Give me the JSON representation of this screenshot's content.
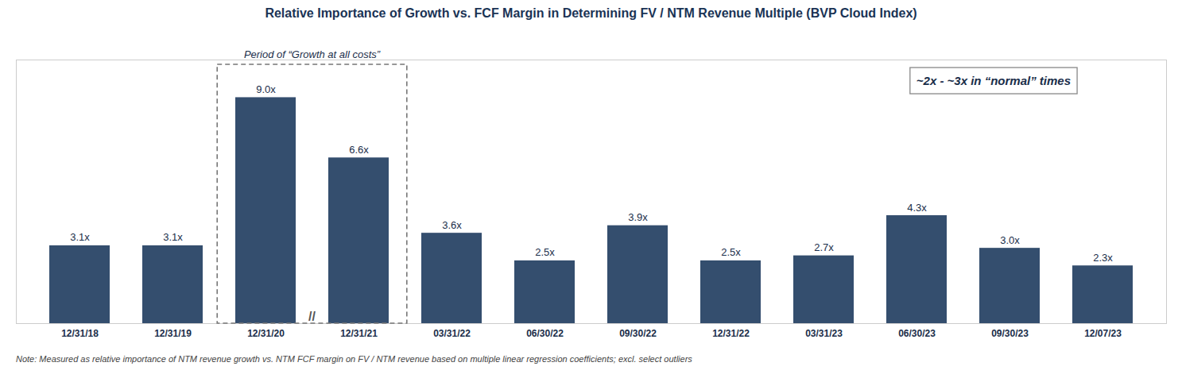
{
  "chart_data": {
    "type": "bar",
    "title": "Relative Importance of Growth vs. FCF Margin in Determining FV / NTM Revenue Multiple (BVP Cloud Index)",
    "categories": [
      "12/31/18",
      "12/31/19",
      "12/31/20",
      "12/31/21",
      "03/31/22",
      "06/30/22",
      "09/30/22",
      "12/31/22",
      "03/31/23",
      "06/30/23",
      "09/30/23",
      "12/07/23"
    ],
    "values": [
      3.1,
      3.1,
      9.0,
      6.6,
      3.6,
      2.5,
      3.9,
      2.5,
      2.7,
      4.3,
      3.0,
      2.3
    ],
    "value_labels": [
      "3.1x",
      "3.1x",
      "9.0x",
      "6.6x",
      "3.6x",
      "2.5x",
      "3.9x",
      "2.5x",
      "2.7x",
      "4.3x",
      "3.0x",
      "2.3x"
    ],
    "data_labels": true,
    "color": "#344e6e",
    "ylim": [
      0,
      10.5
    ],
    "tick_labels": "x",
    "grid": false,
    "annotations": [
      {
        "text": "Period of “Growth at all costs”",
        "span": [
          "12/31/20",
          "12/31/21"
        ]
      },
      {
        "text": "//",
        "between": [
          "12/31/20",
          "12/31/21"
        ]
      },
      {
        "text": "~2x - ~3x in “normal” times"
      }
    ],
    "note": "Note: Measured as relative importance of NTM revenue growth vs. NTM FCF margin on FV / NTM revenue based on multiple linear regression coefficients; excl. select outliers"
  }
}
